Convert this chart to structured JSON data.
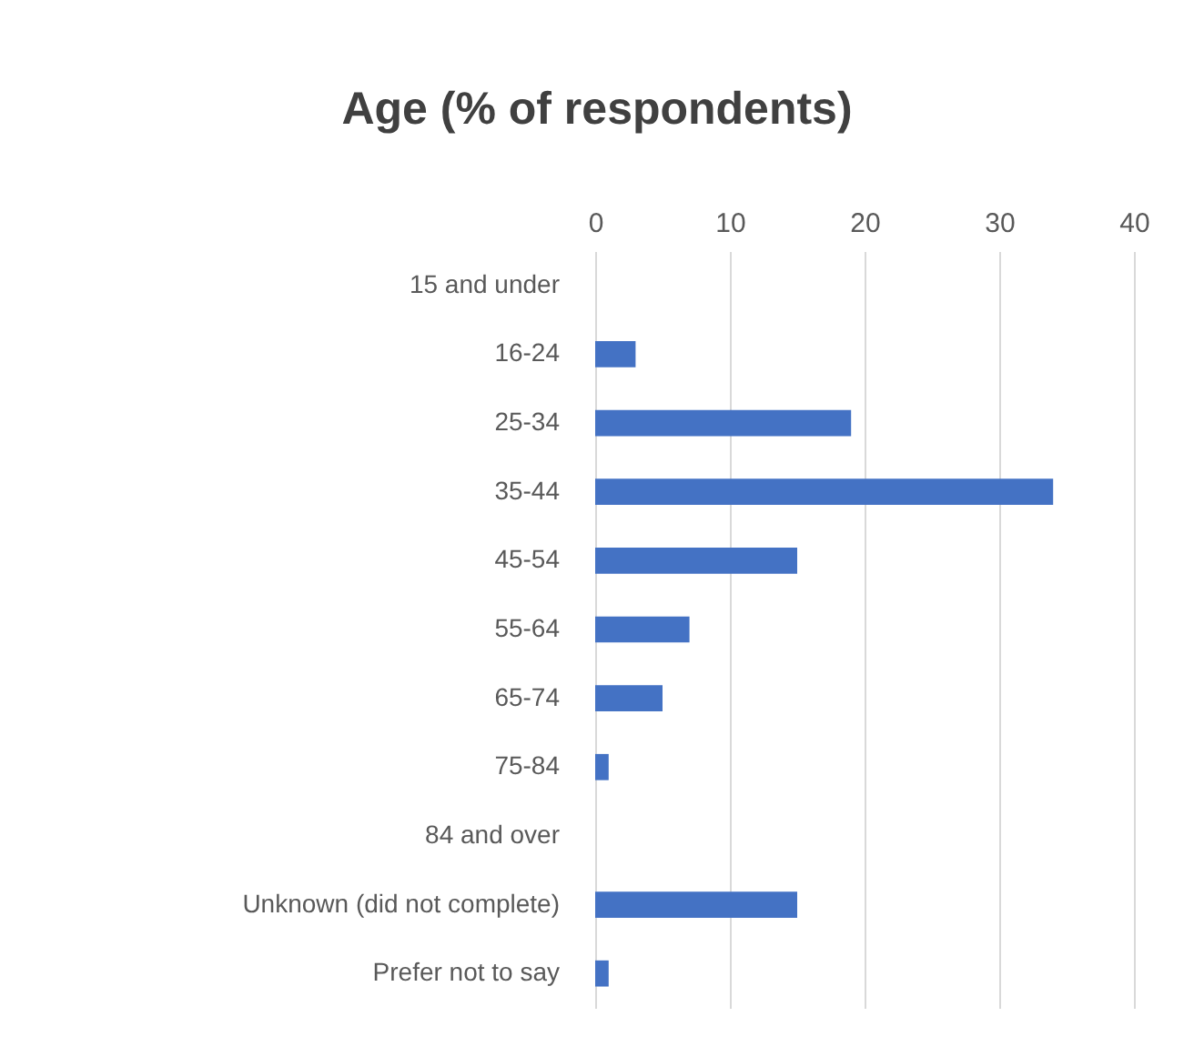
{
  "chart_data": {
    "type": "bar",
    "orientation": "horizontal",
    "title": "Age (% of respondents)",
    "categories": [
      "15 and under",
      "16-24",
      "25-34",
      "35-44",
      "45-54",
      "55-64",
      "65-74",
      "75-84",
      "84 and over",
      "Unknown (did not complete)",
      "Prefer not to say"
    ],
    "values": [
      0,
      3,
      19,
      34,
      15,
      7,
      5,
      1,
      0,
      15,
      1
    ],
    "color": "#4472c4",
    "xlim": [
      0,
      40
    ],
    "xticks": [
      0,
      10,
      20,
      30,
      40
    ],
    "grid": "x",
    "legend": false
  }
}
